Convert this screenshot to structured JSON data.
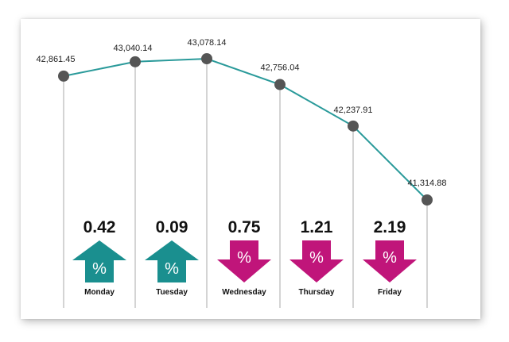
{
  "chart_data": {
    "type": "line",
    "categories": [
      "Monday",
      "Tuesday",
      "Wednesday",
      "Thursday",
      "Friday",
      ""
    ],
    "values": [
      42861.45,
      43040.14,
      43078.14,
      42756.04,
      42237.91,
      41314.88
    ],
    "value_labels": [
      "42,861.45",
      "43,040.14",
      "43,078.14",
      "42,756.04",
      "42,237.91",
      "41,314.88"
    ],
    "changes": [
      {
        "day": "Monday",
        "value": "0.42",
        "direction": "up",
        "symbol": "%"
      },
      {
        "day": "Tuesday",
        "value": "0.09",
        "direction": "up",
        "symbol": "%"
      },
      {
        "day": "Wednesday",
        "value": "0.75",
        "direction": "down",
        "symbol": "%"
      },
      {
        "day": "Thursday",
        "value": "1.21",
        "direction": "down",
        "symbol": "%"
      },
      {
        "day": "Friday",
        "value": "2.19",
        "direction": "down",
        "symbol": "%"
      }
    ],
    "ylim": [
      40500,
      43200
    ],
    "grid": false,
    "title": "",
    "xlabel": "",
    "ylabel": "",
    "colors": {
      "line": "#2a9a9a",
      "marker": "#555555",
      "up_arrow": "#1a8f8f",
      "down_arrow": "#c0157a",
      "stem": "#aaaaaa"
    }
  }
}
